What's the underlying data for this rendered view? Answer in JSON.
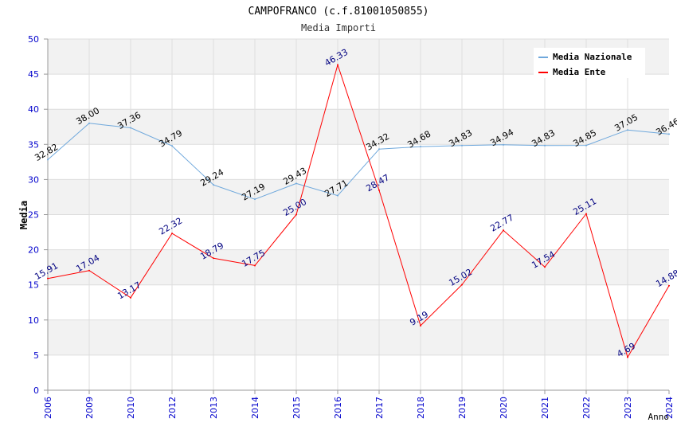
{
  "chart_data": {
    "type": "line",
    "title": "CAMPOFRANCO (c.f.81001050855)",
    "subtitle": "Media Importi",
    "xlabel": "Anno",
    "ylabel": "Media",
    "ylim": [
      0,
      50
    ],
    "yticks": [
      0,
      5,
      10,
      15,
      20,
      25,
      30,
      35,
      40,
      45,
      50
    ],
    "categories": [
      "2006",
      "2009",
      "2010",
      "2012",
      "2013",
      "2014",
      "2015",
      "2016",
      "2017",
      "2018",
      "2019",
      "2020",
      "2021",
      "2022",
      "2023",
      "2024"
    ],
    "series": [
      {
        "name": "Media Nazionale",
        "color": "#6fa8dc",
        "label_color": "#000000",
        "values": [
          32.82,
          38.0,
          37.36,
          34.79,
          29.24,
          27.19,
          29.43,
          27.71,
          34.32,
          34.68,
          34.83,
          34.94,
          34.83,
          34.85,
          37.05,
          36.46
        ],
        "labels": [
          "32.82",
          "38.00",
          "37.36",
          "34.79",
          "29.24",
          "27.19",
          "29.43",
          "27.71",
          "34.32",
          "34.68",
          "34.83",
          "34.94",
          "34.83",
          "34.85",
          "37.05",
          "36.46"
        ]
      },
      {
        "name": "Media Ente",
        "color": "#ff0000",
        "label_color": "#000080",
        "values": [
          15.91,
          17.04,
          13.17,
          22.32,
          18.79,
          17.75,
          25.0,
          46.33,
          28.47,
          9.19,
          15.02,
          22.77,
          17.54,
          25.11,
          4.69,
          14.88
        ],
        "labels": [
          "15.91",
          "17.04",
          "13.17",
          "22.32",
          "18.79",
          "17.75",
          "25.00",
          "46.33",
          "28.47",
          "9.19",
          "15.02",
          "22.77",
          "17.54",
          "25.11",
          "4.69",
          "14.88"
        ]
      }
    ],
    "grid": true,
    "legend": "top-right"
  },
  "colors": {
    "axis_tick": "#0000cc",
    "band": "#f2f2f2",
    "grid": "#dddddd"
  }
}
